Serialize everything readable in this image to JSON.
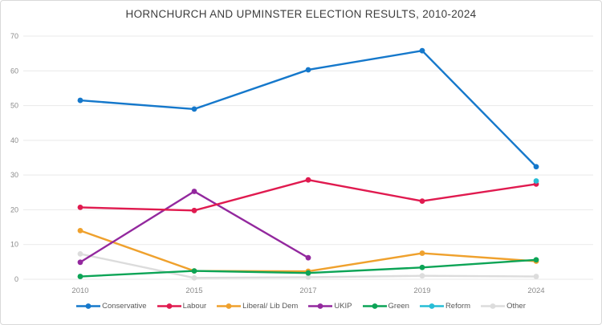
{
  "title": "HORNCHURCH AND UPMINSTER ELECTION RESULTS, 2010-2024",
  "chart_data": {
    "type": "line",
    "categories": [
      "2010",
      "2015",
      "2017",
      "2019",
      "2024"
    ],
    "series": [
      {
        "name": "Conservative",
        "color": "#1578cb",
        "values": [
          51.5,
          49.0,
          60.3,
          65.8,
          32.4
        ]
      },
      {
        "name": "Labour",
        "color": "#e01a4f",
        "values": [
          20.7,
          19.8,
          28.6,
          22.5,
          27.4
        ]
      },
      {
        "name": "Liberal/ Lib Dem",
        "color": "#efa12d",
        "values": [
          14.0,
          2.4,
          2.3,
          7.5,
          5.2
        ]
      },
      {
        "name": "UKIP",
        "color": "#93289e",
        "values": [
          4.9,
          25.3,
          6.2,
          null,
          null
        ]
      },
      {
        "name": "Green",
        "color": "#0ca456",
        "values": [
          0.8,
          2.4,
          1.8,
          3.4,
          5.6
        ]
      },
      {
        "name": "Reform",
        "color": "#27bdd6",
        "values": [
          null,
          null,
          null,
          null,
          28.3
        ]
      },
      {
        "name": "Other",
        "color": "#dcdcdc",
        "values": [
          7.3,
          0.4,
          0.6,
          1.0,
          0.8
        ]
      }
    ],
    "title": "HORNCHURCH AND UPMINSTER ELECTION RESULTS, 2010-2024",
    "xlabel": "",
    "ylabel": "",
    "ylim": [
      0,
      70
    ],
    "ytick_interval": 10,
    "yticks": [
      "0",
      "10",
      "20",
      "30",
      "40",
      "50",
      "60",
      "70"
    ],
    "grid": "horizontal-only",
    "legend_position": "bottom-center"
  },
  "style_colors": {
    "gridline": "#e9e9e9",
    "tick_label": "#8a8a8a",
    "title_text": "#3d3d3d",
    "legend_text": "#595959",
    "background": "#ffffff"
  }
}
